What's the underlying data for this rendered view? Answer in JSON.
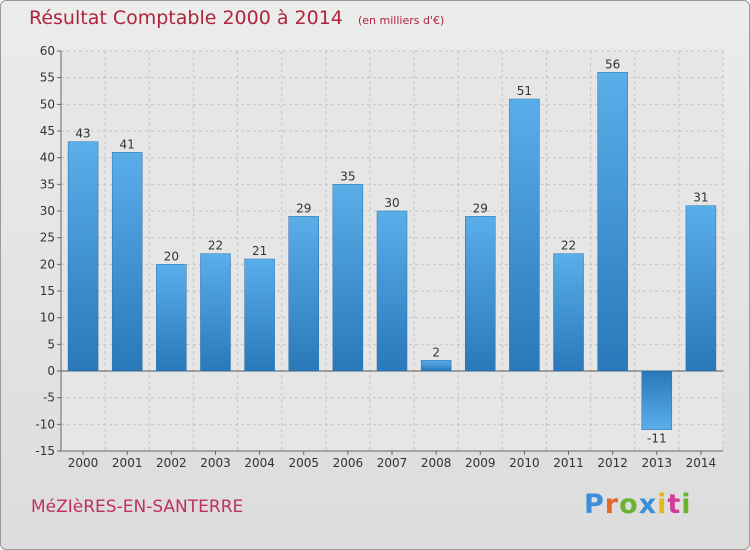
{
  "header": {
    "title": "Résultat Comptable 2000 à 2014",
    "unit": "(en milliers d'€)"
  },
  "location": "MéZIèRES-EN-SANTERRE",
  "logo": {
    "text": "Proxiti"
  },
  "colors": {
    "bar_light": "#5aaee9",
    "bar_dark": "#2a78b9",
    "accent": "#b0243c"
  },
  "chart_data": {
    "type": "bar",
    "categories": [
      "2000",
      "2001",
      "2002",
      "2003",
      "2004",
      "2005",
      "2006",
      "2007",
      "2008",
      "2009",
      "2010",
      "2011",
      "2012",
      "2013",
      "2014"
    ],
    "values": [
      43,
      41,
      20,
      22,
      21,
      29,
      35,
      30,
      2,
      29,
      51,
      22,
      56,
      -11,
      31
    ],
    "title": "Résultat Comptable 2000 à 2014",
    "xlabel": "",
    "ylabel": "",
    "ylim": [
      -15,
      60
    ],
    "yticks": [
      -15,
      -10,
      -5,
      0,
      5,
      10,
      15,
      20,
      25,
      30,
      35,
      40,
      45,
      50,
      55,
      60
    ],
    "grid": true,
    "data_labels": true
  }
}
